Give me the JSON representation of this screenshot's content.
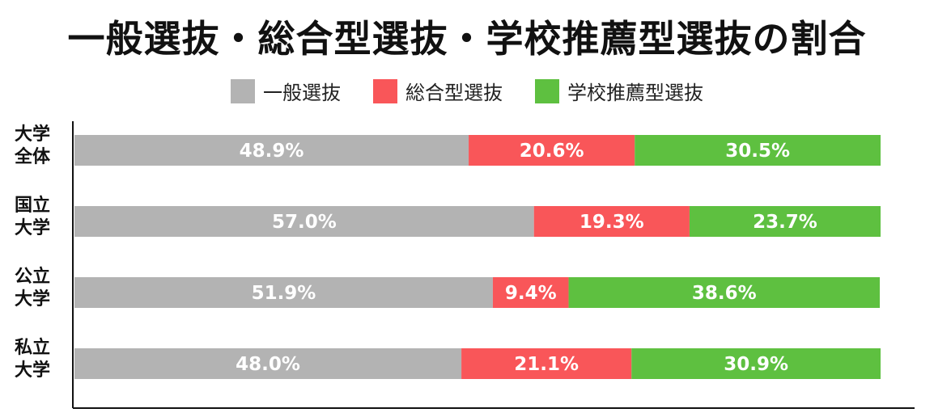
{
  "chart_data": {
    "type": "bar",
    "orientation": "horizontal",
    "stacked": true,
    "percent": true,
    "title": "一般選抜・総合型選抜・学校推薦型選抜の割合",
    "categories": [
      [
        "大学",
        "全体"
      ],
      [
        "国立",
        "大学"
      ],
      [
        "公立",
        "大学"
      ],
      [
        "私立",
        "大学"
      ]
    ],
    "series": [
      {
        "name": "一般選抜",
        "color": "#b3b3b3",
        "values": [
          48.9,
          57.0,
          51.9,
          48.0
        ],
        "labels": [
          "48.9%",
          "57.0%",
          "51.9%",
          "48.0%"
        ]
      },
      {
        "name": "総合型選抜",
        "color": "#f95659",
        "values": [
          20.6,
          19.3,
          9.4,
          21.1
        ],
        "labels": [
          "20.6%",
          "19.3%",
          "9.4%",
          "21.1%"
        ]
      },
      {
        "name": "学校推薦型選抜",
        "color": "#5ec040",
        "values": [
          30.5,
          23.7,
          38.6,
          30.9
        ],
        "labels": [
          "30.5%",
          "23.7%",
          "38.6%",
          "30.9%"
        ]
      }
    ],
    "xlim": [
      0,
      100
    ],
    "legend_position": "top-center",
    "grid": false
  }
}
